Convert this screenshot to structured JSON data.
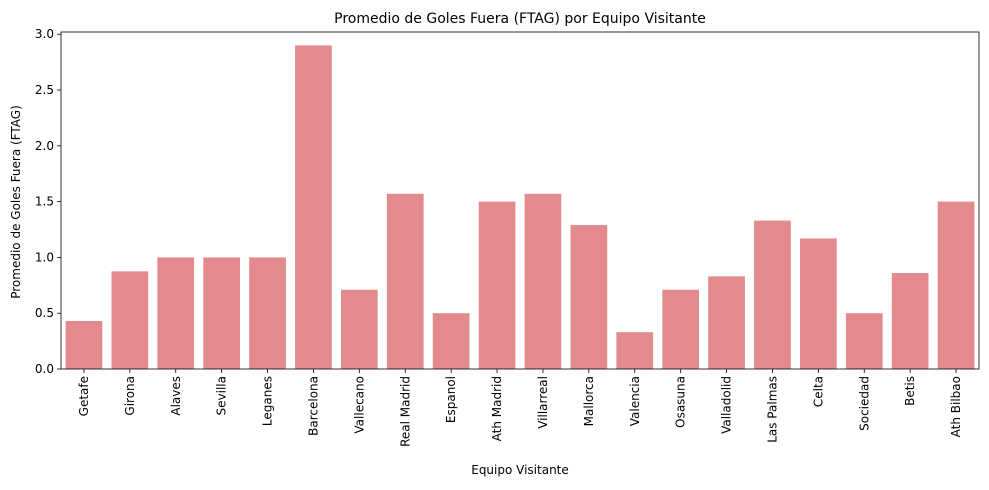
{
  "chart_data": {
    "type": "bar",
    "title": "Promedio de Goles Fuera (FTAG) por Equipo Visitante",
    "xlabel": "Equipo Visitante",
    "ylabel": "Promedio de Goles Fuera (FTAG)",
    "ylim": [
      0,
      3.02
    ],
    "yticks": [
      "0.0",
      "0.5",
      "1.0",
      "1.5",
      "2.0",
      "2.5",
      "3.0"
    ],
    "grid": false,
    "bar_color": "#E28A8D",
    "categories": [
      "Getafe",
      "Girona",
      "Alaves",
      "Sevilla",
      "Leganes",
      "Barcelona",
      "Vallecano",
      "Real Madrid",
      "Espanol",
      "Ath Madrid",
      "Villarreal",
      "Mallorca",
      "Valencia",
      "Osasuna",
      "Valladolid",
      "Las Palmas",
      "Celta",
      "Sociedad",
      "Betis",
      "Ath Bilbao"
    ],
    "values": [
      0.43,
      0.875,
      1.0,
      1.0,
      1.0,
      2.9,
      0.71,
      1.57,
      0.5,
      1.5,
      1.57,
      1.29,
      0.33,
      0.71,
      0.83,
      1.33,
      1.17,
      0.5,
      0.86,
      1.5
    ]
  }
}
